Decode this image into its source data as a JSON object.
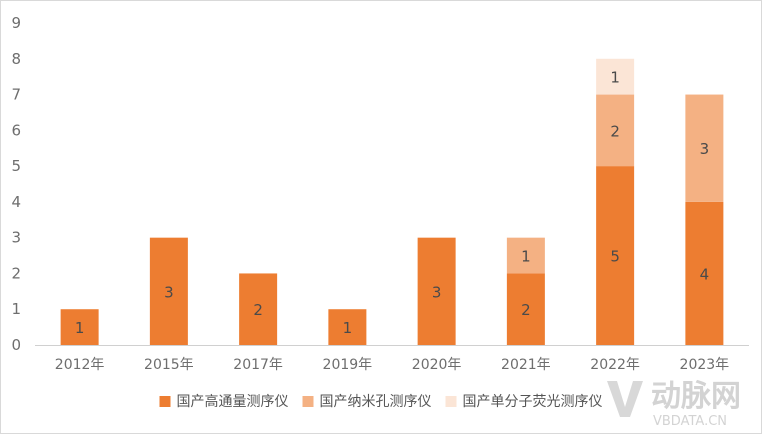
{
  "chart_data": {
    "type": "bar",
    "stacked": true,
    "categories": [
      "2012年",
      "2015年",
      "2017年",
      "2019年",
      "2020年",
      "2021年",
      "2022年",
      "2023年"
    ],
    "series": [
      {
        "name": "国产高通量测序仪",
        "color": "#ED7D31",
        "values": [
          1,
          3,
          2,
          1,
          3,
          2,
          5,
          4
        ]
      },
      {
        "name": "国产纳米孔测序仪",
        "color": "#F4B183",
        "values": [
          0,
          0,
          0,
          0,
          0,
          1,
          2,
          3
        ]
      },
      {
        "name": "国产单分子荧光测序仪",
        "color": "#FBE5D6",
        "values": [
          0,
          0,
          0,
          0,
          0,
          0,
          1,
          0
        ]
      }
    ],
    "ylim": [
      0,
      9
    ],
    "yticks": [
      0,
      1,
      2,
      3,
      4,
      5,
      6,
      7,
      8,
      9
    ],
    "grid": false,
    "legend_position": "bottom"
  },
  "watermark": {
    "logo_text": "动脉网",
    "site": "VBDATA.CN"
  }
}
